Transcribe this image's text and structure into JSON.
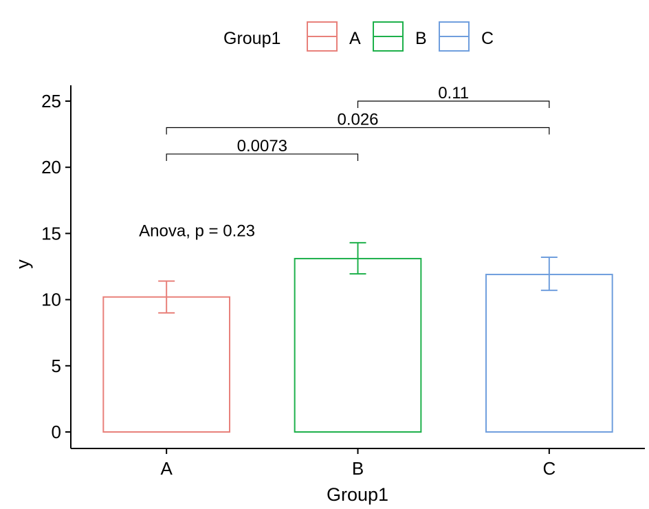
{
  "chart_data": {
    "type": "bar",
    "xlabel": "Group1",
    "ylabel": "y",
    "categories": [
      "A",
      "B",
      "C"
    ],
    "values": [
      10.2,
      13.1,
      11.9
    ],
    "error_low": [
      9.0,
      11.95,
      10.7
    ],
    "error_high": [
      11.4,
      14.3,
      13.2
    ],
    "ylim": [
      -1.1,
      26.2
    ],
    "yticks": [
      0,
      5,
      10,
      15,
      20,
      25
    ],
    "grid": false,
    "legend": {
      "title": "Group1",
      "position": "top",
      "entries": [
        "A",
        "B",
        "C"
      ]
    },
    "colors": [
      "#E8807A",
      "#1DB04A",
      "#6F9EDD"
    ],
    "annotations": {
      "anova": {
        "text": "Anova, p = 0.23",
        "x": "A",
        "y": 15.2
      },
      "comparisons": [
        {
          "from": "A",
          "to": "B",
          "label": "0.0073",
          "y": 21.0
        },
        {
          "from": "A",
          "to": "C",
          "label": "0.026",
          "y": 23.0
        },
        {
          "from": "B",
          "to": "C",
          "label": "0.11",
          "y": 25.0
        }
      ]
    }
  }
}
